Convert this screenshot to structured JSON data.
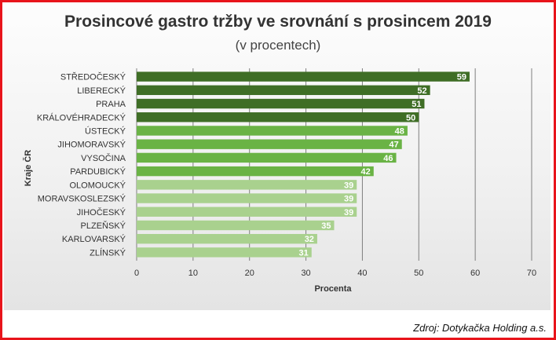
{
  "chart_data": {
    "type": "bar",
    "orientation": "horizontal",
    "title": "Prosincové gastro tržby ve srovnání s prosincem 2019",
    "subtitle": "(v procentech)",
    "xlabel": "Procenta",
    "ylabel": "Kraje ČR",
    "xlim": [
      0,
      70
    ],
    "xticks": [
      "0",
      "10",
      "20",
      "30",
      "40",
      "50",
      "60",
      "70"
    ],
    "grid": true,
    "categories": [
      "STŘEDOČESKÝ",
      "LIBERECKÝ",
      "PRAHA",
      "KRÁLOVÉHRADECKÝ",
      "ÚSTECKÝ",
      "JIHOMORAVSKÝ",
      "VYSOČINA",
      "PARDUBICKÝ",
      "OLOMOUCKÝ",
      "MORAVSKOSLEZSKÝ",
      "JIHOČESKÝ",
      "PLZEŇSKÝ",
      "KARLOVARSKÝ",
      "ZLÍNSKÝ"
    ],
    "values": [
      59,
      52,
      51,
      50,
      48,
      47,
      46,
      42,
      39,
      39,
      39,
      35,
      32,
      31
    ],
    "bar_colors": [
      "#3f6e26",
      "#3f6e26",
      "#3f6e26",
      "#3f6e26",
      "#6ab345",
      "#6ab345",
      "#6ab345",
      "#6ab345",
      "#a9d18e",
      "#a9d18e",
      "#a9d18e",
      "#a9d18e",
      "#a9d18e",
      "#a9d18e"
    ]
  },
  "source": "Zdroj: Dotykačka Holding a.s.",
  "colors": {
    "frame_border": "#e8141b",
    "grid": "#7f7f7f",
    "dark_green": "#3f6e26",
    "mid_green": "#6ab345",
    "light_green": "#a9d18e"
  }
}
